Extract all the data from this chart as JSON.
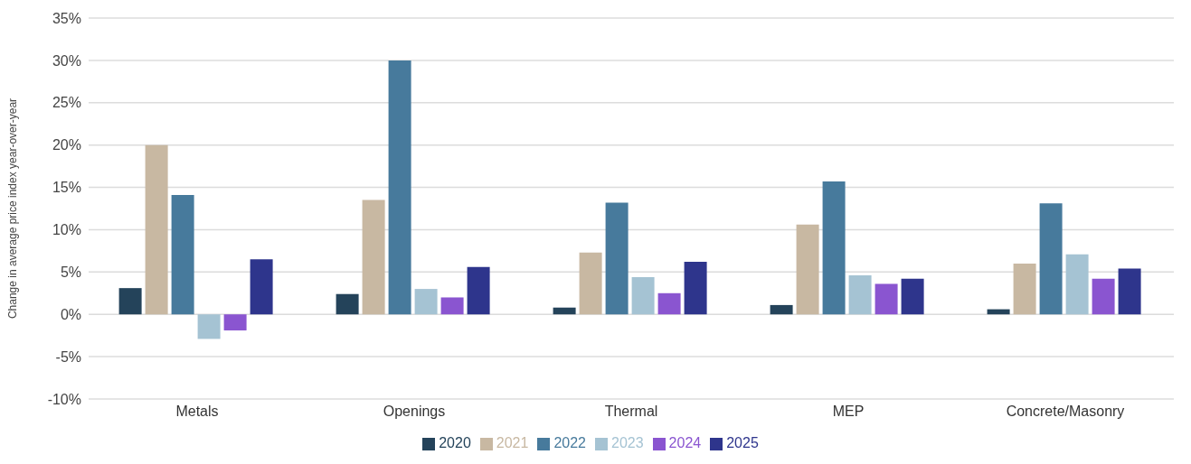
{
  "chart_data": {
    "type": "bar",
    "ylabel": "Change in average price index year-over-year",
    "categories": [
      "Metals",
      "Openings",
      "Thermal",
      "MEP",
      "Concrete/Masonry"
    ],
    "series": [
      {
        "name": "2020",
        "color": "#24435a",
        "values": [
          3.1,
          2.4,
          0.8,
          1.1,
          0.6
        ]
      },
      {
        "name": "2021",
        "color": "#c8b8a2",
        "values": [
          20.0,
          13.5,
          7.3,
          10.6,
          6.0
        ]
      },
      {
        "name": "2022",
        "color": "#477a9c",
        "values": [
          14.1,
          30.0,
          13.2,
          15.7,
          13.1
        ]
      },
      {
        "name": "2023",
        "color": "#a5c3d3",
        "values": [
          -2.9,
          3.0,
          4.4,
          4.6,
          7.1
        ]
      },
      {
        "name": "2024",
        "color": "#8a55d0",
        "values": [
          -1.9,
          2.0,
          2.5,
          3.6,
          4.2
        ]
      },
      {
        "name": "2025",
        "color": "#2e358c",
        "values": [
          6.5,
          5.6,
          6.2,
          4.2,
          5.4
        ]
      }
    ],
    "ylim": [
      -10,
      35
    ],
    "yticks": [
      {
        "value": -10,
        "label": "-10%"
      },
      {
        "value": -5,
        "label": "-5%"
      },
      {
        "value": 0,
        "label": "0%"
      },
      {
        "value": 5,
        "label": "5%"
      },
      {
        "value": 10,
        "label": "10%"
      },
      {
        "value": 15,
        "label": "15%"
      },
      {
        "value": 20,
        "label": "20%"
      },
      {
        "value": 25,
        "label": "25%"
      },
      {
        "value": 30,
        "label": "30%"
      },
      {
        "value": 35,
        "label": "35%"
      }
    ],
    "grid": "y",
    "legend": "bottom"
  }
}
